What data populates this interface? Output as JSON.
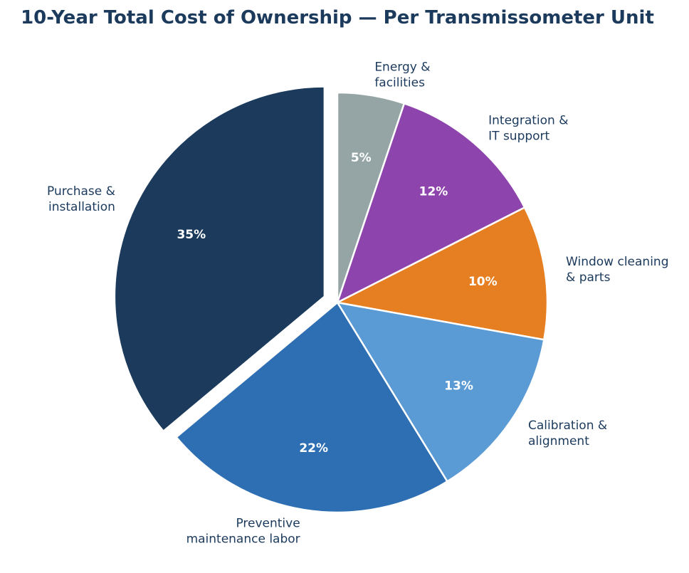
{
  "chart_data": {
    "type": "pie",
    "title": "10-Year Total Cost of Ownership — Per Transmissometer Unit",
    "slices": [
      {
        "label": [
          "Energy &",
          "facilities"
        ],
        "value": 5,
        "pct_label": "5%",
        "color": "#95a5a6",
        "exploded": false
      },
      {
        "label": [
          "Integration &",
          "IT support"
        ],
        "value": 12,
        "pct_label": "12%",
        "color": "#8e44ad",
        "exploded": false
      },
      {
        "label": [
          "Window cleaning",
          "& parts"
        ],
        "value": 10,
        "pct_label": "10%",
        "color": "#e67e22",
        "exploded": false
      },
      {
        "label": [
          "Calibration &",
          "alignment"
        ],
        "value": 13,
        "pct_label": "13%",
        "color": "#5b9bd5",
        "exploded": false
      },
      {
        "label": [
          "Preventive",
          "maintenance labor"
        ],
        "value": 22,
        "pct_label": "22%",
        "color": "#2e6fb3",
        "exploded": false
      },
      {
        "label": [
          "Purchase &",
          "installation"
        ],
        "value": 35,
        "pct_label": "35%",
        "color": "#1b3a5c",
        "exploded": true
      }
    ],
    "start_angle": "12 o'clock",
    "direction": "clockwise",
    "legend": "none"
  }
}
